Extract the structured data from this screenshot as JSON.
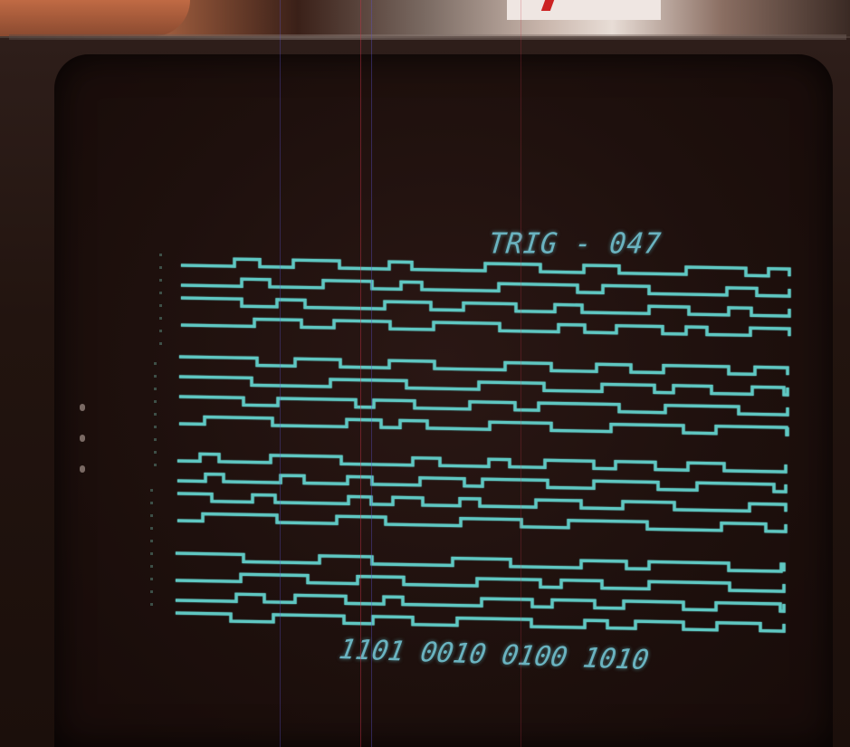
{
  "scene": {
    "subject": "oscilloscope-monitor-logic-analyzer",
    "colors": {
      "phosphor": "#5fc7c2",
      "label": "#6ab3c0",
      "bezel": "#22140f"
    }
  },
  "display": {
    "title": "TRIG - 047",
    "binary_readout": "1101 0010 0100 1010"
  }
}
